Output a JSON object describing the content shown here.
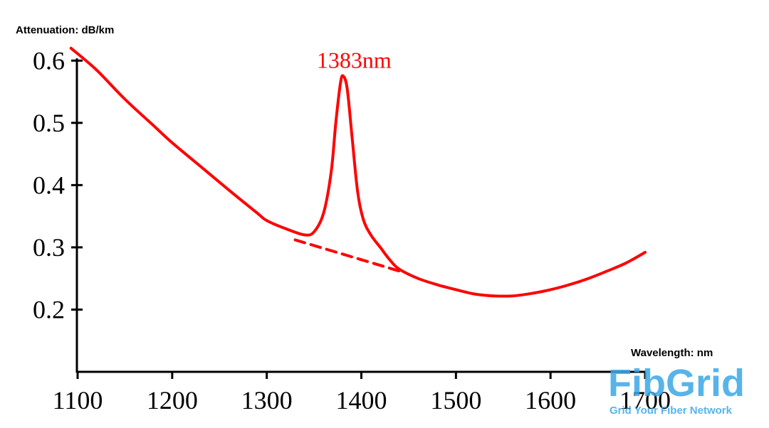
{
  "chart_data": {
    "type": "line",
    "ylabel": "Attenuation: dB/km",
    "xlabel": "Wavelength: nm",
    "xlim": [
      1100,
      1700
    ],
    "ylim": [
      0.1,
      0.63
    ],
    "x_ticks": [
      "1100",
      "1200",
      "1300",
      "1400",
      "1500",
      "1600",
      "1700"
    ],
    "y_ticks": [
      "0.2",
      "0.3",
      "0.4",
      "0.5",
      "0.6"
    ],
    "grid": false,
    "series": [
      {
        "style": "solid",
        "color": "#ff0000",
        "points": [
          [
            1093,
            0.62
          ],
          [
            1120,
            0.585
          ],
          [
            1150,
            0.538
          ],
          [
            1180,
            0.496
          ],
          [
            1200,
            0.468
          ],
          [
            1230,
            0.43
          ],
          [
            1260,
            0.392
          ],
          [
            1290,
            0.355
          ],
          [
            1300,
            0.343
          ],
          [
            1320,
            0.33
          ],
          [
            1340,
            0.32
          ],
          [
            1350,
            0.325
          ],
          [
            1360,
            0.355
          ],
          [
            1368,
            0.42
          ],
          [
            1373,
            0.5
          ],
          [
            1378,
            0.565
          ],
          [
            1381,
            0.575
          ],
          [
            1385,
            0.555
          ],
          [
            1390,
            0.48
          ],
          [
            1396,
            0.39
          ],
          [
            1402,
            0.345
          ],
          [
            1410,
            0.32
          ],
          [
            1420,
            0.3
          ],
          [
            1430,
            0.28
          ],
          [
            1440,
            0.265
          ],
          [
            1460,
            0.25
          ],
          [
            1480,
            0.24
          ],
          [
            1500,
            0.232
          ],
          [
            1520,
            0.225
          ],
          [
            1540,
            0.222
          ],
          [
            1560,
            0.222
          ],
          [
            1580,
            0.226
          ],
          [
            1600,
            0.232
          ],
          [
            1620,
            0.24
          ],
          [
            1640,
            0.25
          ],
          [
            1660,
            0.262
          ],
          [
            1680,
            0.275
          ],
          [
            1700,
            0.292
          ]
        ]
      },
      {
        "style": "dashed",
        "color": "#ff0000",
        "points": [
          [
            1330,
            0.312
          ],
          [
            1440,
            0.262
          ]
        ]
      }
    ],
    "annotations": [
      {
        "text": "1383nm",
        "x": 1383,
        "y": 0.6,
        "color": "#ff0000"
      }
    ]
  },
  "logo": {
    "name": "FibGrid",
    "tagline": "Grid Your Fiber Network",
    "color": "#3aa7e8"
  }
}
